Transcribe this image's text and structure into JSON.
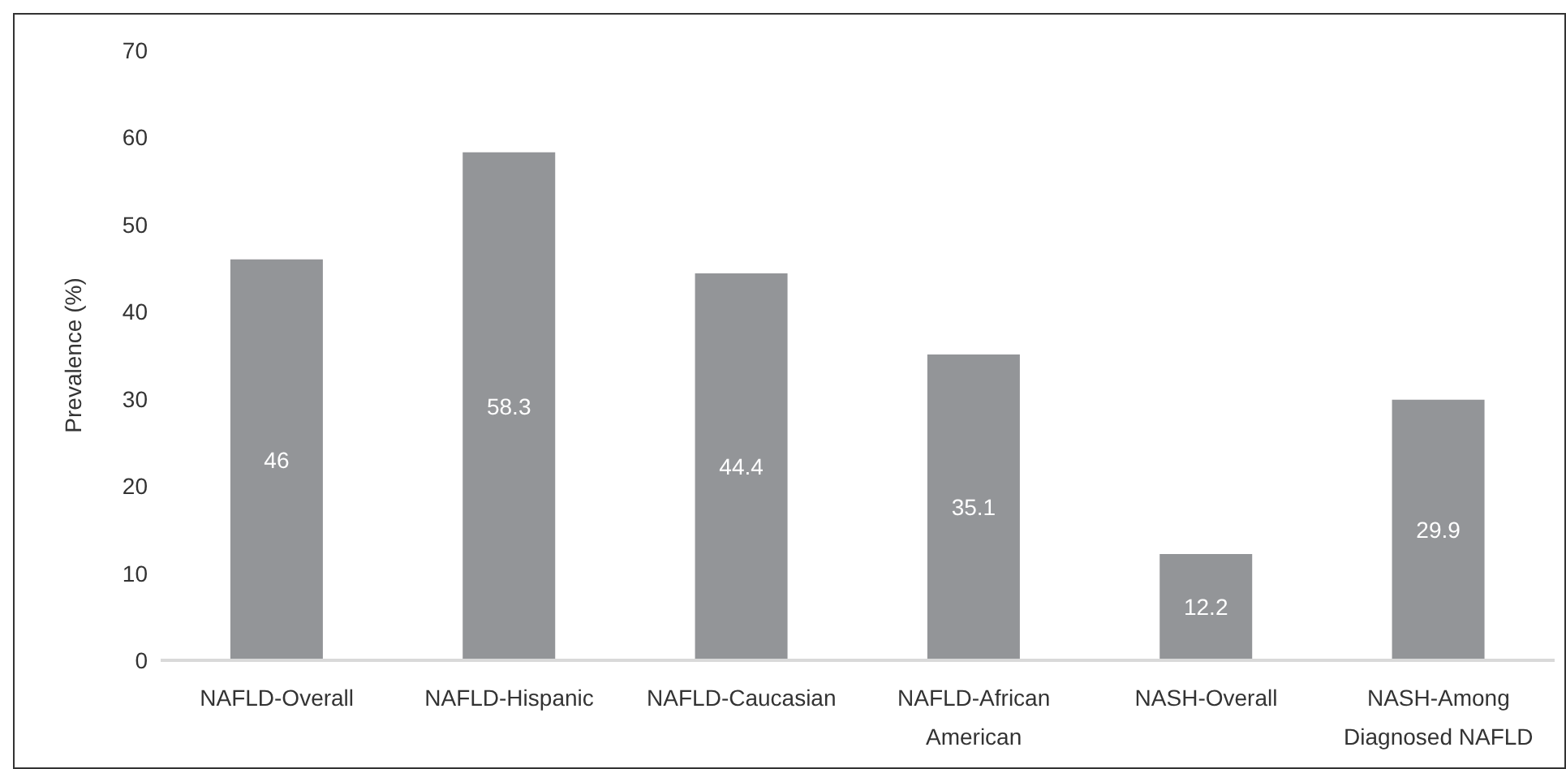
{
  "chart_data": {
    "type": "bar",
    "ylabel": "Prevalence (%)",
    "categories": [
      "NAFLD-Overall",
      "NAFLD-Hispanic",
      "NAFLD-Caucasian",
      "NAFLD-African American",
      "NASH-Overall",
      "NASH-Among Diagnosed NAFLD"
    ],
    "values": [
      46,
      58.3,
      44.4,
      35.1,
      12.2,
      29.9
    ],
    "color": "#939598",
    "ylim": [
      0,
      70
    ],
    "yticks": [
      0,
      10,
      20,
      30,
      40,
      50,
      60,
      70
    ],
    "data_labels": true
  }
}
